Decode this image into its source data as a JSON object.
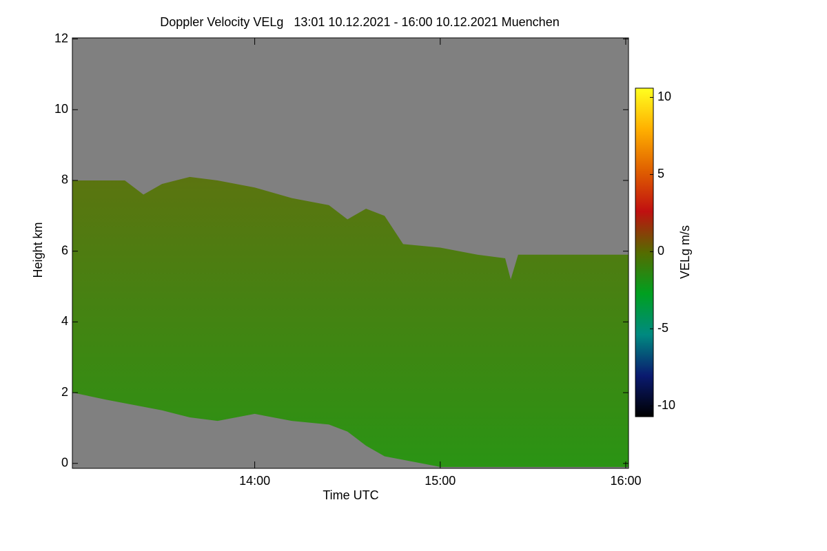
{
  "chart_data": {
    "type": "heatmap-profile",
    "title": "Doppler Velocity VELg   13:01 10.12.2021 - 16:00 10.12.2021 Muenchen",
    "x_label": "Time UTC",
    "y_label": "Height km",
    "xlim": [
      13.017,
      16.015
    ],
    "xticks": [
      {
        "value": 14,
        "label": "14:00"
      },
      {
        "value": 15,
        "label": "15:00"
      },
      {
        "value": 16,
        "label": "16:00"
      }
    ],
    "ylim": [
      -0.14,
      12.03
    ],
    "yticks": [
      0,
      2,
      4,
      6,
      8,
      10,
      12
    ],
    "x": [
      13.02,
      13.2,
      13.3,
      13.4,
      13.5,
      13.65,
      13.8,
      14.0,
      14.2,
      14.4,
      14.5,
      14.6,
      14.7,
      14.8,
      15.0,
      15.2,
      15.35,
      15.38,
      15.42,
      15.6,
      16.0
    ],
    "top": [
      8.0,
      8.0,
      8.0,
      7.6,
      7.9,
      8.1,
      8.0,
      7.8,
      7.5,
      7.3,
      6.9,
      7.2,
      7.0,
      6.2,
      6.1,
      5.9,
      5.8,
      5.2,
      5.9,
      5.9,
      5.9
    ],
    "base": [
      2.0,
      1.8,
      1.7,
      1.6,
      1.5,
      1.3,
      1.2,
      1.4,
      1.2,
      1.1,
      0.9,
      0.5,
      0.2,
      0.1,
      -0.1,
      -0.1,
      -0.1,
      -0.1,
      -0.1,
      -0.1,
      -0.1
    ],
    "background": "#808080",
    "fill": [
      "#5b7410",
      "#2a9414"
    ],
    "colorbar": {
      "label": "VELg m/s",
      "lim": [
        -10.7,
        10.6
      ],
      "ticks": [
        -10,
        -5,
        0,
        5,
        10
      ],
      "colors": [
        "#000000",
        "#0a1a70",
        "#008a80",
        "#00a020",
        "#556b00",
        "#c01010",
        "#e06000",
        "#ffb000",
        "#ffff20"
      ]
    }
  }
}
